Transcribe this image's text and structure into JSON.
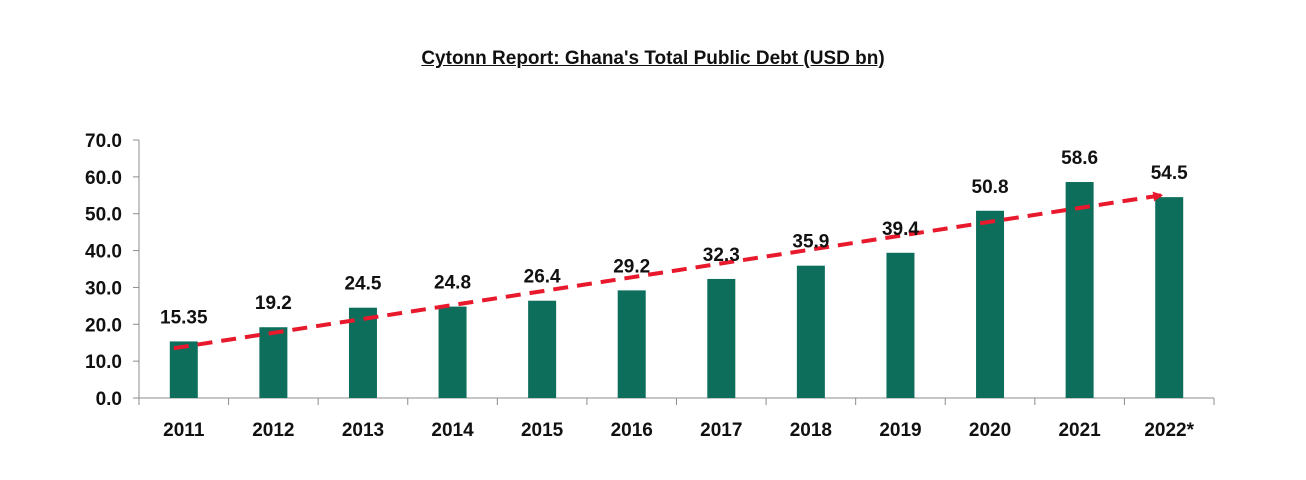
{
  "chart_data": {
    "type": "bar",
    "title": "Cytonn Report: Ghana's Total Public Debt (USD bn)",
    "xlabel": "",
    "ylabel": "",
    "categories": [
      "2011",
      "2012",
      "2013",
      "2014",
      "2015",
      "2016",
      "2017",
      "2018",
      "2019",
      "2020",
      "2021",
      "2022*"
    ],
    "values": [
      15.35,
      19.2,
      24.5,
      24.8,
      26.4,
      29.2,
      32.3,
      35.9,
      39.4,
      50.8,
      58.6,
      54.5
    ],
    "value_labels": [
      "15.35",
      "19.2",
      "24.5",
      "24.8",
      "26.4",
      "29.2",
      "32.3",
      "35.9",
      "39.4",
      "50.8",
      "58.6",
      "54.5"
    ],
    "ylim": [
      0,
      70
    ],
    "yticks": [
      "0.0",
      "10.0",
      "20.0",
      "30.0",
      "40.0",
      "50.0",
      "60.0",
      "70.0"
    ],
    "grid": false,
    "legend": "none",
    "bar_color": "#0e6e5c",
    "trend_line": {
      "style": "dashed-arrow",
      "color": "#e8192c",
      "from": 13.5,
      "to": 55.0
    }
  }
}
